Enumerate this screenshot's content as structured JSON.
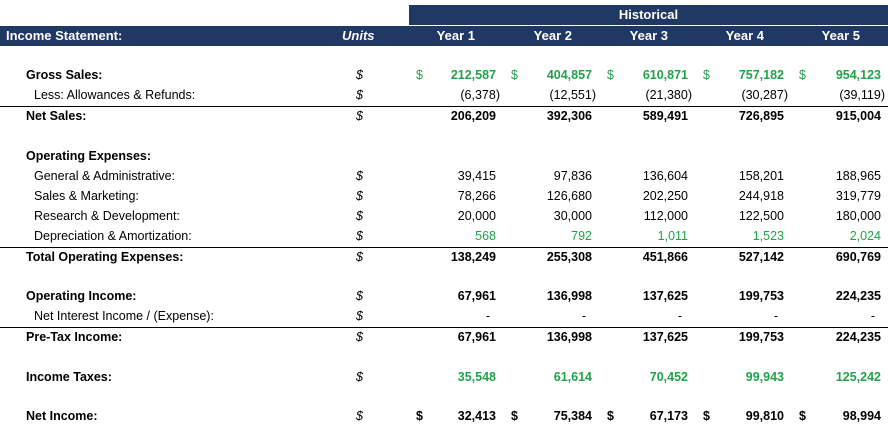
{
  "header": {
    "group_label": "Historical",
    "title": "Income Statement:",
    "units_label": "Units",
    "years": [
      "Year 1",
      "Year 2",
      "Year 3",
      "Year 4",
      "Year 5"
    ]
  },
  "colors": {
    "header_bg": "#1f3864",
    "header_text": "#ffffff",
    "green": "#21a24a"
  },
  "rows": [
    {
      "label": "Gross Sales:",
      "unit": "$",
      "dollar_signs": true,
      "values": [
        "212,587",
        "404,857",
        "610,871",
        "757,182",
        "954,123"
      ]
    },
    {
      "label": "Less: Allowances & Refunds:",
      "unit": "$",
      "values": [
        "(6,378)",
        "(12,551)",
        "(21,380)",
        "(30,287)",
        "(39,119)"
      ]
    },
    {
      "label": "Net Sales:",
      "unit": "$",
      "values": [
        "206,209",
        "392,306",
        "589,491",
        "726,895",
        "915,004"
      ]
    },
    {
      "label": "Operating Expenses:"
    },
    {
      "label": "General & Administrative:",
      "unit": "$",
      "values": [
        "39,415",
        "97,836",
        "136,604",
        "158,201",
        "188,965"
      ]
    },
    {
      "label": "Sales & Marketing:",
      "unit": "$",
      "values": [
        "78,266",
        "126,680",
        "202,250",
        "244,918",
        "319,779"
      ]
    },
    {
      "label": "Research & Development:",
      "unit": "$",
      "values": [
        "20,000",
        "30,000",
        "112,000",
        "122,500",
        "180,000"
      ]
    },
    {
      "label": "Depreciation & Amortization:",
      "unit": "$",
      "values": [
        "568",
        "792",
        "1,011",
        "1,523",
        "2,024"
      ]
    },
    {
      "label": "Total Operating Expenses:",
      "unit": "$",
      "values": [
        "138,249",
        "255,308",
        "451,866",
        "527,142",
        "690,769"
      ]
    },
    {
      "label": "Operating Income:",
      "unit": "$",
      "values": [
        "67,961",
        "136,998",
        "137,625",
        "199,753",
        "224,235"
      ]
    },
    {
      "label": "Net Interest Income / (Expense):",
      "unit": "$",
      "values": [
        "-",
        "-",
        "-",
        "-",
        "-"
      ]
    },
    {
      "label": "Pre-Tax Income:",
      "unit": "$",
      "values": [
        "67,961",
        "136,998",
        "137,625",
        "199,753",
        "224,235"
      ]
    },
    {
      "label": "Income Taxes:",
      "unit": "$",
      "values": [
        "35,548",
        "61,614",
        "70,452",
        "99,943",
        "125,242"
      ]
    },
    {
      "label": "Net Income:",
      "unit": "$",
      "dollar_signs": true,
      "values": [
        "32,413",
        "75,384",
        "67,173",
        "99,810",
        "98,994"
      ]
    }
  ]
}
